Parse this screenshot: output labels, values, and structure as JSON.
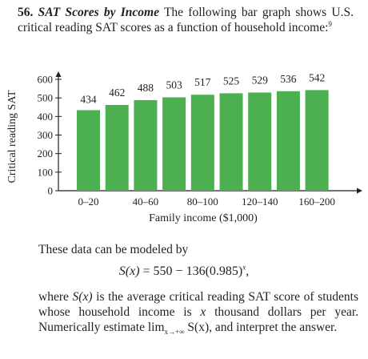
{
  "problem": {
    "number": "56.",
    "title": "SAT Scores by Income",
    "text": "The following bar graph shows U.S. critical reading SAT scores as a function of household income:",
    "footnote": "9"
  },
  "chart_data": {
    "type": "bar",
    "values": [
      434,
      462,
      488,
      503,
      517,
      525,
      529,
      536,
      542
    ],
    "bar_color": "#4caf50",
    "ylim": [
      0,
      600
    ],
    "yticks": [
      0,
      100,
      200,
      300,
      400,
      500,
      600
    ],
    "ylabel": "Critical reading SAT",
    "xlabel": "Family income ($1,000)",
    "xtick_labels": [
      {
        "label": "0–20",
        "bar_index": 0
      },
      {
        "label": "40–60",
        "bar_index": 2
      },
      {
        "label": "80–100",
        "bar_index": 4
      },
      {
        "label": "120–140",
        "bar_index": 6
      },
      {
        "label": "160–200",
        "bar_index": 8
      }
    ],
    "grid": false,
    "legend": "none"
  },
  "text1": "These data can be modeled by",
  "formula": {
    "lhs": "S(x)",
    "rhs": "= 550 − 136(0.985)",
    "exponent": "x",
    "tail": ","
  },
  "text2": {
    "p1": "where",
    "sx": "S(x)",
    "p2": "is the average critical reading SAT score of students whose household income is",
    "x": "x",
    "p3": "thousand dollars per year. Numerically estimate lim",
    "limsub": "x→+∞",
    "p4": "S(x), and interpret the answer."
  }
}
